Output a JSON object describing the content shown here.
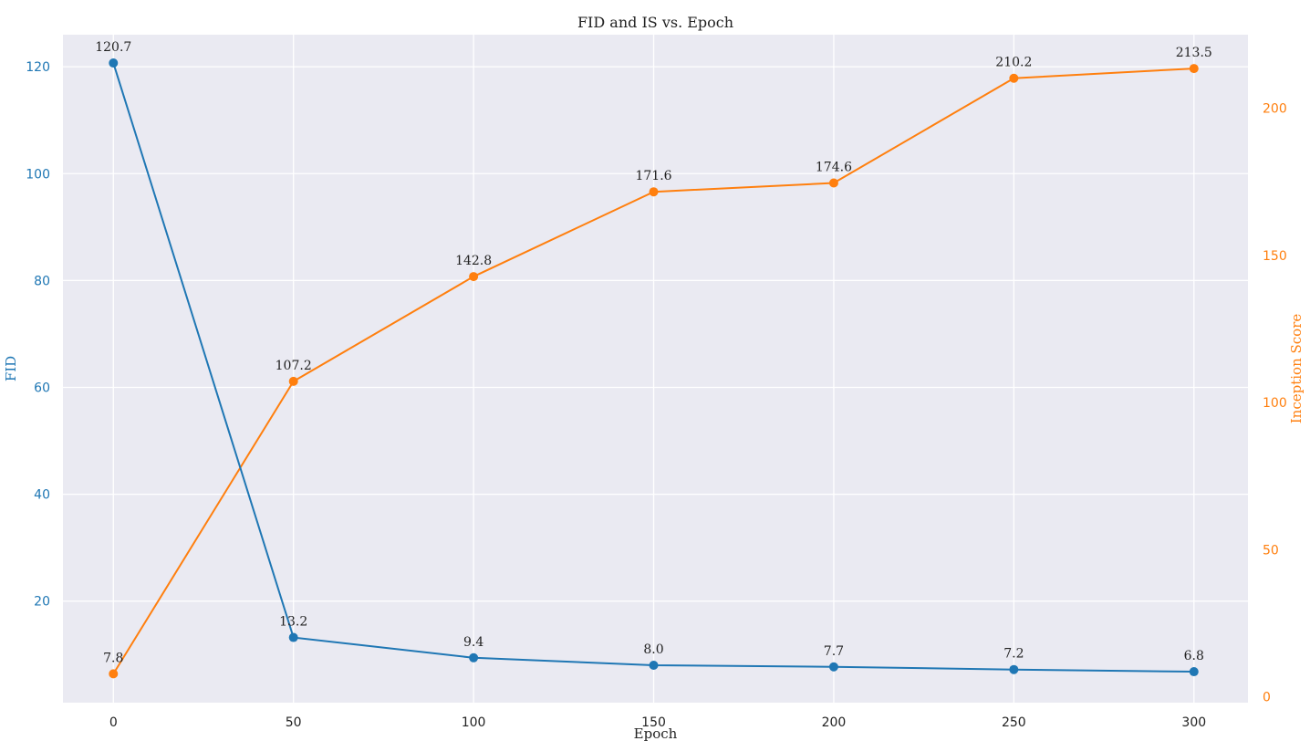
{
  "chart_data": {
    "type": "line",
    "title": "FID and IS vs. Epoch",
    "xlabel": "Epoch",
    "x": [
      0,
      50,
      100,
      150,
      200,
      250,
      300
    ],
    "x_ticks": [
      0,
      50,
      100,
      150,
      200,
      250,
      300
    ],
    "xlim": [
      -14,
      315
    ],
    "grid": true,
    "series": [
      {
        "name": "FID",
        "axis": "left",
        "color": "#1f77b4",
        "ylabel": "FID",
        "ylim": [
          1,
          126
        ],
        "y_ticks": [
          20,
          40,
          60,
          80,
          100,
          120
        ],
        "values": [
          120.7,
          13.2,
          9.4,
          8.0,
          7.7,
          7.2,
          6.8
        ],
        "labels": [
          "120.7",
          "13.2",
          "9.4",
          "8.0",
          "7.7",
          "7.2",
          "6.8"
        ],
        "marker": "circle"
      },
      {
        "name": "Inception Score",
        "axis": "right",
        "color": "#ff7f0e",
        "ylabel": "Inception Score",
        "ylim": [
          -2,
          225
        ],
        "y_ticks": [
          0,
          50,
          100,
          150,
          200
        ],
        "values": [
          7.8,
          107.2,
          142.8,
          171.6,
          174.6,
          210.2,
          213.5
        ],
        "labels": [
          "7.8",
          "107.2",
          "142.8",
          "171.6",
          "174.6",
          "210.2",
          "213.5"
        ],
        "marker": "circle"
      }
    ]
  }
}
